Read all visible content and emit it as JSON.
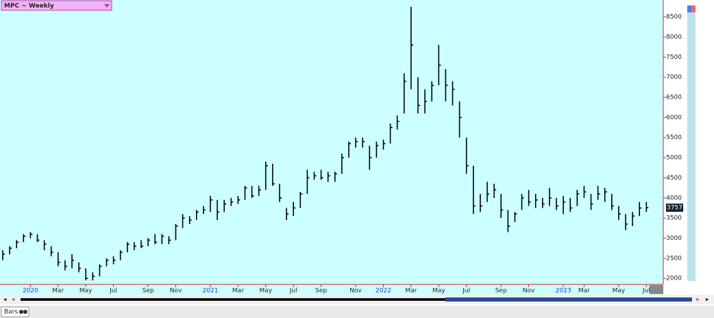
{
  "chart_data": {
    "type": "ohlc",
    "title": "MPC ~ Weekly",
    "categories": [
      null,
      null,
      null,
      null,
      "2020",
      null,
      null,
      null,
      "Mar",
      null,
      null,
      null,
      "May",
      null,
      null,
      null,
      "Jul",
      null,
      null,
      null,
      null,
      "Sep",
      null,
      null,
      null,
      "Nov",
      null,
      null,
      null,
      null,
      "2021",
      null,
      null,
      null,
      "Mar",
      null,
      null,
      null,
      "May",
      null,
      null,
      null,
      "Jul",
      null,
      null,
      null,
      "Sep",
      null,
      null,
      null,
      null,
      "Nov",
      null,
      null,
      null,
      "2022",
      null,
      null,
      null,
      "Mar",
      null,
      null,
      null,
      "May",
      null,
      null,
      null,
      "Jul",
      null,
      null,
      null,
      null,
      "Sep",
      null,
      null,
      null,
      "Nov",
      null,
      null,
      null,
      null,
      "2023",
      null,
      null,
      "Mar",
      null,
      null,
      null,
      null,
      "May",
      null,
      null,
      null,
      "Jul"
    ],
    "high": [
      2700,
      2800,
      2950,
      3100,
      3150,
      3100,
      2950,
      2800,
      2650,
      2450,
      2600,
      2400,
      2250,
      2150,
      2350,
      2500,
      2550,
      2700,
      2900,
      2900,
      2950,
      3000,
      3100,
      3100,
      3050,
      3350,
      3600,
      3550,
      3700,
      3800,
      4050,
      3950,
      3950,
      4000,
      4050,
      4300,
      4300,
      4300,
      4900,
      4850,
      4350,
      3750,
      3900,
      4150,
      4700,
      4650,
      4700,
      4650,
      4650,
      5100,
      5400,
      5500,
      5500,
      5300,
      5400,
      5450,
      5850,
      6050,
      7100,
      8750,
      7000,
      6700,
      6900,
      7800,
      7200,
      6900,
      6400,
      5500,
      4800,
      4100,
      4400,
      4350,
      4100,
      3700,
      3650,
      4100,
      4200,
      4100,
      4000,
      4250,
      4000,
      4050,
      4000,
      4200,
      4300,
      4100,
      4300,
      4250,
      4100,
      3800,
      3600,
      3650,
      3900,
      3900
    ],
    "low": [
      2450,
      2600,
      2750,
      2900,
      3000,
      2900,
      2700,
      2550,
      2300,
      2200,
      2250,
      2150,
      1950,
      1950,
      2050,
      2300,
      2350,
      2450,
      2650,
      2700,
      2750,
      2800,
      2850,
      2850,
      2850,
      2950,
      3250,
      3350,
      3450,
      3600,
      3650,
      3450,
      3650,
      3800,
      3850,
      3950,
      4000,
      4050,
      4200,
      4300,
      3900,
      3450,
      3550,
      3750,
      4100,
      4450,
      4450,
      4400,
      4400,
      4600,
      5000,
      5250,
      5250,
      4700,
      5000,
      5200,
      5350,
      5700,
      6100,
      6700,
      6100,
      6100,
      6400,
      6800,
      6400,
      6300,
      5500,
      4600,
      3600,
      3650,
      3900,
      4000,
      3500,
      3150,
      3400,
      3700,
      3800,
      3750,
      3750,
      3800,
      3700,
      3600,
      3650,
      3800,
      4000,
      3700,
      3950,
      3900,
      3700,
      3450,
      3200,
      3300,
      3550,
      3650
    ],
    "close": [
      2600,
      2750,
      2900,
      3050,
      3100,
      2950,
      2850,
      2650,
      2400,
      2300,
      2450,
      2250,
      2000,
      2050,
      2300,
      2450,
      2450,
      2650,
      2850,
      2800,
      2800,
      2950,
      2900,
      3050,
      2950,
      3300,
      3500,
      3450,
      3650,
      3700,
      3950,
      3650,
      3850,
      3900,
      3950,
      4250,
      4050,
      4200,
      4800,
      4350,
      4000,
      3600,
      3750,
      4100,
      4500,
      4550,
      4500,
      4550,
      4600,
      5000,
      5350,
      5400,
      5400,
      5000,
      5300,
      5350,
      5750,
      5900,
      6900,
      7800,
      6300,
      6400,
      6800,
      7300,
      6800,
      6700,
      6000,
      4800,
      3800,
      3800,
      4100,
      4200,
      3700,
      3300,
      3600,
      4000,
      3900,
      3950,
      3850,
      4000,
      3800,
      3900,
      3750,
      4100,
      4150,
      3850,
      4100,
      4150,
      3800,
      3600,
      3350,
      3550,
      3750,
      3757
    ],
    "color": "#000000",
    "ylim": [
      1850,
      8920
    ],
    "yticks": [
      2000,
      2500,
      3000,
      3500,
      4000,
      4500,
      5000,
      5500,
      6000,
      6500,
      7000,
      7500,
      8000,
      8500
    ]
  },
  "tab_label": "Bars"
}
